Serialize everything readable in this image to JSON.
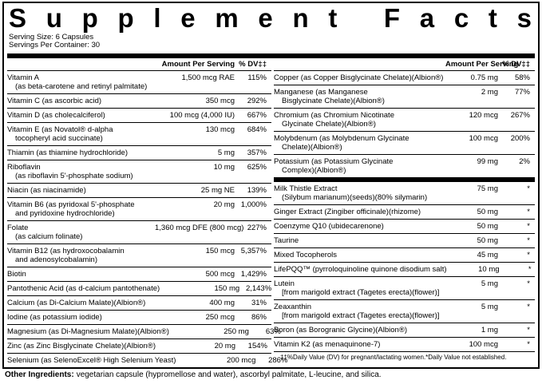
{
  "header": {
    "title": "Supplement Facts",
    "serving_size": "Serving Size: 6 Capsules",
    "servings_per_container": "Servings Per Container: 30"
  },
  "columns": [
    {
      "amount_heading": "Amount Per Serving",
      "dv_heading": "% DV‡‡",
      "groups": [
        {
          "rows": [
            {
              "name": [
                "Vitamin A",
                "(as beta-carotene and retinyl palmitate)"
              ],
              "amount": "1,500 mcg RAE",
              "dv": "115%"
            },
            {
              "name": [
                "Vitamin C (as ascorbic acid)"
              ],
              "amount": "350 mcg",
              "dv": "292%"
            },
            {
              "name": [
                "Vitamin D (as cholecalciferol)"
              ],
              "amount": "100 mcg (4,000 IU)",
              "dv": "667%"
            },
            {
              "name": [
                "Vitamin E (as Novatol® d-alpha",
                "tocopheryl acid succinate)"
              ],
              "amount": "130 mcg",
              "dv": "684%"
            },
            {
              "name": [
                "Thiamin (as thiamine hydrochloride)"
              ],
              "amount": "5 mg",
              "dv": "357%"
            },
            {
              "name": [
                "Riboflavin",
                "(as riboflavin 5'-phosphate sodium)"
              ],
              "amount": "10 mg",
              "dv": "625%"
            },
            {
              "name": [
                "Niacin (as niacinamide)"
              ],
              "amount": "25 mg NE",
              "dv": "139%"
            },
            {
              "name": [
                "Vitamin B6 (as pyridoxal 5'-phosphate",
                "and pyridoxine hydrochloride)"
              ],
              "amount": "20 mg",
              "dv": "1,000%"
            },
            {
              "name": [
                "Folate",
                "(as calcium folinate)"
              ],
              "amount": "1,360 mcg DFE (800 mcg)",
              "dv": "227%"
            },
            {
              "name": [
                "Vitamin B12 (as hydroxocobalamin",
                "and adenosylcobalamin)"
              ],
              "amount": "150 mcg",
              "dv": "5,357%"
            },
            {
              "name": [
                "Biotin"
              ],
              "amount": "500 mcg",
              "dv": "1,429%"
            },
            {
              "name": [
                "Pantothenic Acid (as d-calcium pantothenate)"
              ],
              "amount": "150 mg",
              "dv": "2,143%"
            },
            {
              "name": [
                "Calcium (as Di-Calcium Malate)(Albion®)"
              ],
              "amount": "400 mg",
              "dv": "31%"
            },
            {
              "name": [
                "Iodine (as potassium iodide)"
              ],
              "amount": "250 mcg",
              "dv": "86%"
            },
            {
              "name": [
                "Magnesium (as Di-Magnesium Malate)(Albion®)"
              ],
              "amount": "250 mg",
              "dv": "63%"
            },
            {
              "name": [
                "Zinc (as Zinc Bisglycinate Chelate)(Albion®)"
              ],
              "amount": "20 mg",
              "dv": "154%"
            },
            {
              "name": [
                "Selenium (as SelenoExcel® High Selenium Yeast)"
              ],
              "amount": "200 mcg",
              "dv": "286%"
            }
          ]
        }
      ]
    },
    {
      "amount_heading": "Amount Per Serving",
      "dv_heading": "% DV‡‡",
      "groups": [
        {
          "rows": [
            {
              "name": [
                "Copper (as Copper Bisglycinate Chelate)(Albion®)"
              ],
              "amount": "0.75 mg",
              "dv": "58%"
            },
            {
              "name": [
                "Manganese (as Manganese",
                "Bisglycinate Chelate)(Albion®)"
              ],
              "amount": "2 mg",
              "dv": "77%"
            },
            {
              "name": [
                "Chromium (as Chromium Nicotinate",
                "Glycinate Chelate)(Albion®)"
              ],
              "amount": "120 mcg",
              "dv": "267%"
            },
            {
              "name": [
                "Molybdenum (as Molybdenum Glycinate",
                "Chelate)(Albion®)"
              ],
              "amount": "100 mcg",
              "dv": "200%"
            },
            {
              "name": [
                "Potassium (as Potassium Glycinate",
                "Complex)(Albion®)"
              ],
              "amount": "99 mg",
              "dv": "2%"
            }
          ]
        },
        {
          "rows": [
            {
              "name": [
                "Milk Thistle Extract",
                "(Silybum marianum)(seeds)(80% silymarin)"
              ],
              "amount": "75 mg",
              "dv": "*"
            },
            {
              "name": [
                "Ginger Extract (Zingiber officinale)(rhizome)"
              ],
              "amount": "50 mg",
              "dv": "*"
            },
            {
              "name": [
                "Coenzyme Q10 (ubidecarenone)"
              ],
              "amount": "50 mg",
              "dv": "*"
            },
            {
              "name": [
                "Taurine"
              ],
              "amount": "50 mg",
              "dv": "*"
            },
            {
              "name": [
                "Mixed Tocopherols"
              ],
              "amount": "45 mg",
              "dv": "*"
            },
            {
              "name": [
                "LifePQQ™ (pyrroloquinoline quinone disodium salt)"
              ],
              "amount": "10 mg",
              "dv": "*"
            },
            {
              "name": [
                "Lutein",
                "[from marigold extract (Tagetes erecta)(flower)]"
              ],
              "amount": "5 mg",
              "dv": "*"
            },
            {
              "name": [
                "Zeaxanthin",
                "[from marigold extract (Tagetes erecta)(flower)]"
              ],
              "amount": "5 mg",
              "dv": "*"
            },
            {
              "name": [
                "Boron (as Borogranic Glycine)(Albion®)"
              ],
              "amount": "1 mg",
              "dv": "*"
            },
            {
              "name": [
                "Vitamin K2 (as menaquinone-7)"
              ],
              "amount": "100 mcg",
              "dv": "*"
            }
          ]
        }
      ],
      "footnote": "‡‡%Daily Value (DV) for pregnant/lactating women.*Daily Value not established."
    }
  ],
  "other_ingredients": {
    "label": "Other Ingredients:",
    "text": "vegetarian capsule (hypromellose and water), ascorbyl palmitate, L-leucine, and silica."
  }
}
